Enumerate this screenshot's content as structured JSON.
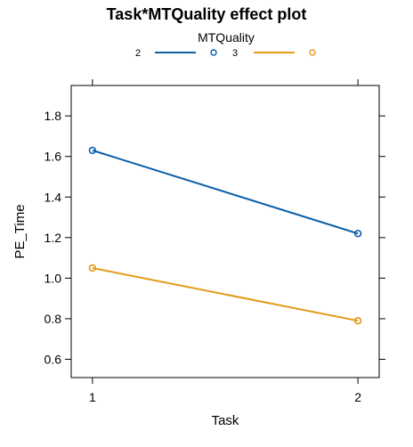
{
  "chart_data": {
    "type": "line",
    "title": "Task*MTQuality effect plot",
    "xlabel": "Task",
    "ylabel": "PE_Time",
    "categories": [
      "1",
      "2"
    ],
    "x": [
      1,
      2
    ],
    "xlim": [
      0.92,
      2.08
    ],
    "xticks": [
      "1",
      "2"
    ],
    "ylim": [
      0.51,
      1.95
    ],
    "yticks": [
      "0.6",
      "0.8",
      "1.0",
      "1.2",
      "1.4",
      "1.6",
      "1.8"
    ],
    "grid": false,
    "legend": {
      "title": "MTQuality",
      "placement": "top"
    },
    "series": [
      {
        "name": "2",
        "values": [
          1.63,
          1.22
        ],
        "color": "#0B5EA8",
        "marker": "circle"
      },
      {
        "name": "3",
        "values": [
          1.05,
          0.79
        ],
        "color": "#E39B17",
        "marker": "circle"
      }
    ]
  }
}
